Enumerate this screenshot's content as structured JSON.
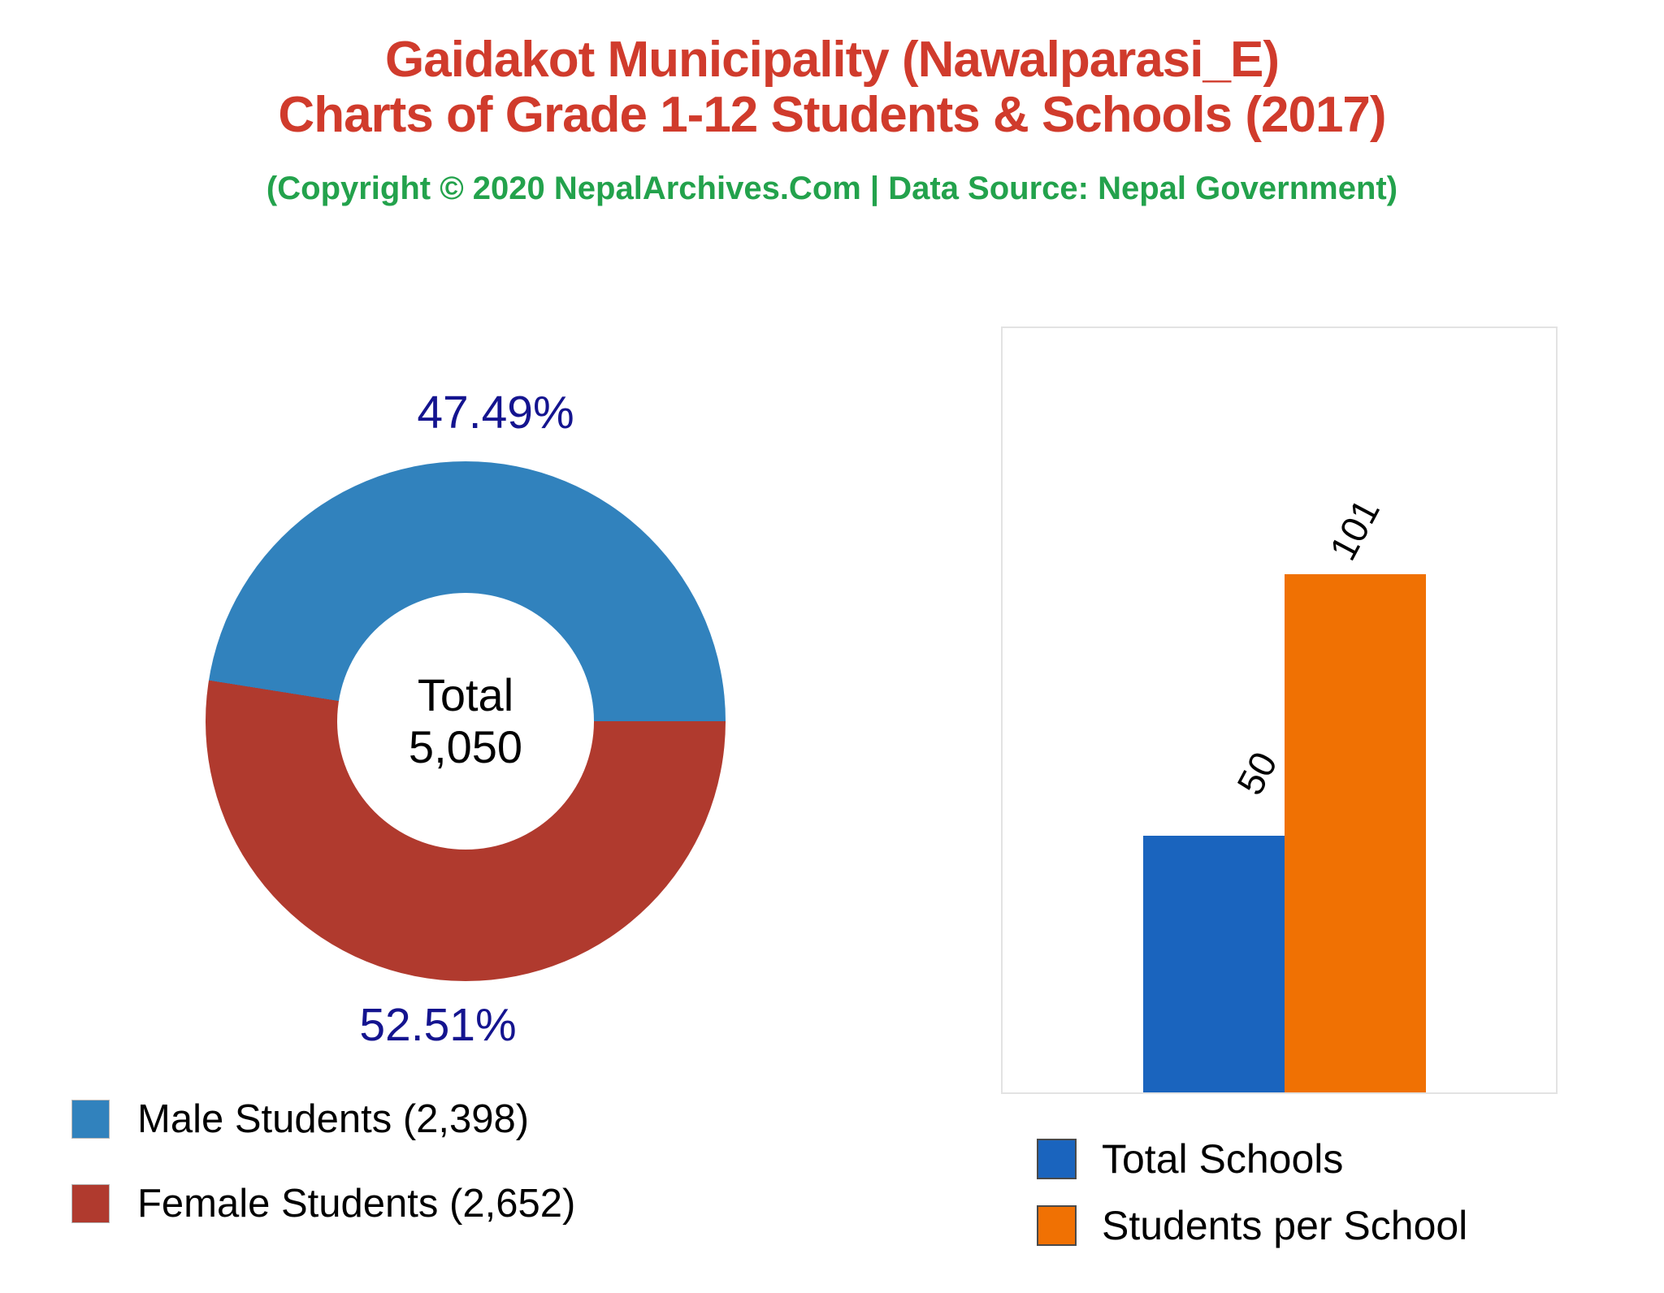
{
  "header": {
    "title_line1": "Gaidakot Municipality (Nawalparasi_E)",
    "title_line2": "Charts of Grade 1-12 Students & Schools (2017)",
    "subtitle": "(Copyright © 2020 NepalArchives.Com | Data Source: Nepal Government)",
    "title_color": "#d03b2c",
    "subtitle_color": "#23a24c"
  },
  "chart_data": [
    {
      "type": "pie",
      "donut": true,
      "labels": [
        "Male Students",
        "Female Students"
      ],
      "values": [
        2398,
        2652
      ],
      "value_labels": [
        "2,398",
        "2,652"
      ],
      "percent_labels": [
        "47.49%",
        "52.51%"
      ],
      "colors": [
        "#3182bd",
        "#b03a2e"
      ],
      "percent_label_color": "#14148f",
      "hole_label": "Total",
      "hole_value": "5,050",
      "legend": [
        "Male Students (2,398)",
        "Female Students (2,652)"
      ],
      "legend_position": "bottom-left"
    },
    {
      "type": "bar",
      "categories": [
        "Total Schools",
        "Students per School"
      ],
      "values": [
        50,
        101
      ],
      "value_labels": [
        "50",
        "101"
      ],
      "colors": [
        "#1a64be",
        "#f07103"
      ],
      "legend": [
        "Total Schools",
        "Students per School"
      ],
      "legend_position": "bottom",
      "ylim": [
        0,
        150
      ],
      "grid": false,
      "axes_hidden": true,
      "value_label_angle_deg": -62
    }
  ]
}
